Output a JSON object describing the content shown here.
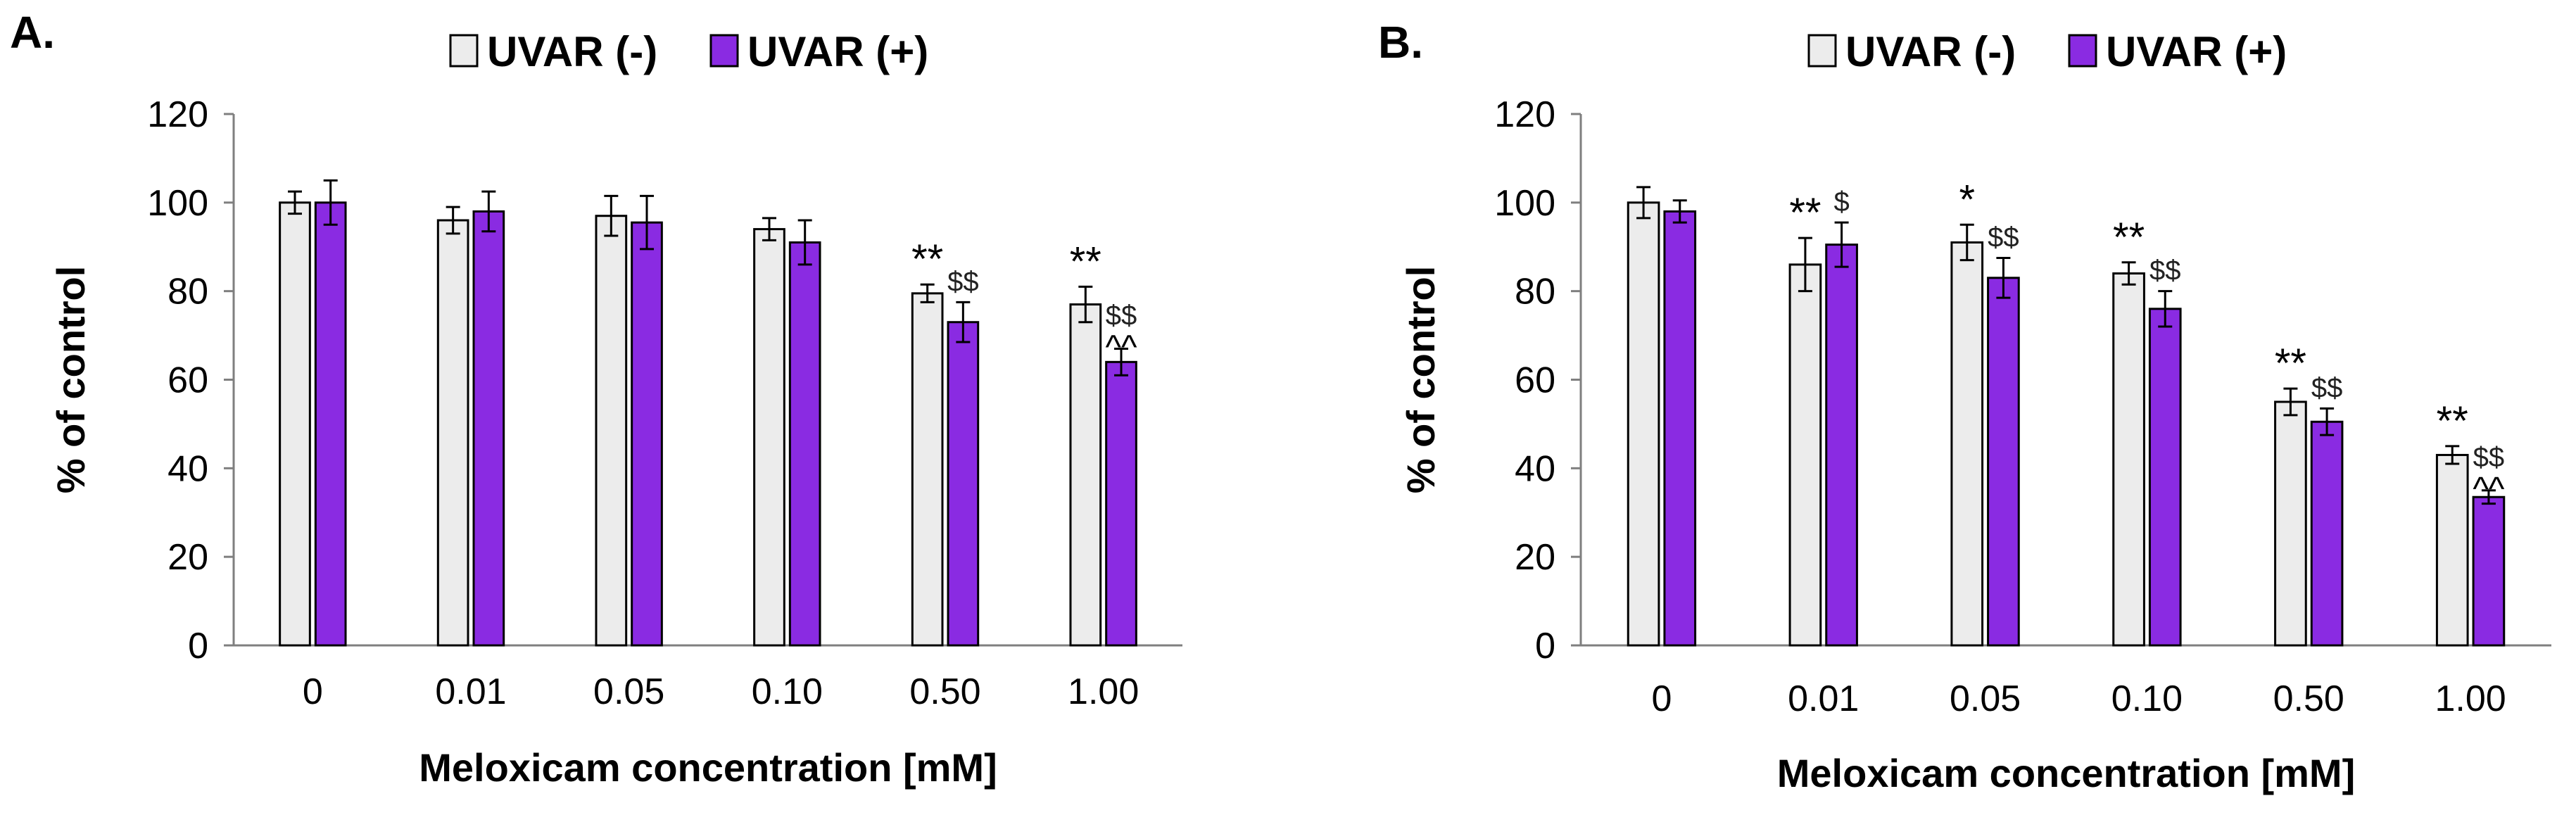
{
  "colors": {
    "uvar_minus_fill": "#ececec",
    "uvar_plus_fill": "#8a2be2",
    "bar_stroke": "#000000",
    "axis": "#7f7f7f"
  },
  "chart_data": [
    {
      "panel_label": "A.",
      "type": "bar",
      "xlabel": "Meloxicam concentration [mM]",
      "ylabel": "% of control",
      "ylim": [
        0,
        120
      ],
      "yticks": [
        "0",
        "20",
        "40",
        "60",
        "80",
        "100",
        "120"
      ],
      "categories": [
        "0",
        "0.01",
        "0.05",
        "0.10",
        "0.50",
        "1.00"
      ],
      "legend": [
        "UVAR (-)",
        "UVAR (+)"
      ],
      "legend_position": "top-center",
      "grid": false,
      "series": [
        {
          "name": "UVAR (-)",
          "values": [
            100,
            96,
            97,
            94,
            79.5,
            77
          ],
          "errors": [
            2.5,
            3,
            4.5,
            2.5,
            2,
            4
          ],
          "annotations": [
            "",
            "",
            "",
            "",
            "**",
            "**"
          ]
        },
        {
          "name": "UVAR (+)",
          "values": [
            100,
            98,
            95.5,
            91,
            73,
            64
          ],
          "errors": [
            5,
            4.5,
            6,
            5,
            4.5,
            3
          ],
          "annotations": [
            "",
            "",
            "",
            "",
            "$$",
            "$$\n^^"
          ]
        }
      ]
    },
    {
      "panel_label": "B.",
      "type": "bar",
      "xlabel": "Meloxicam concentration [mM]",
      "ylabel": "% of control",
      "ylim": [
        0,
        120
      ],
      "yticks": [
        "0",
        "20",
        "40",
        "60",
        "80",
        "100",
        "120"
      ],
      "categories": [
        "0",
        "0.01",
        "0.05",
        "0.10",
        "0.50",
        "1.00"
      ],
      "legend": [
        "UVAR (-)",
        "UVAR (+)"
      ],
      "legend_position": "top-center",
      "grid": false,
      "series": [
        {
          "name": "UVAR (-)",
          "values": [
            100,
            86,
            91,
            84,
            55,
            43
          ],
          "errors": [
            3.5,
            6,
            4,
            2.5,
            3,
            2
          ],
          "annotations": [
            "",
            "**",
            "*",
            "**",
            "**",
            "**"
          ]
        },
        {
          "name": "UVAR (+)",
          "values": [
            98,
            90.5,
            83,
            76,
            50.5,
            33.5
          ],
          "errors": [
            2.5,
            5,
            4.5,
            4,
            3,
            1.5
          ],
          "annotations": [
            "",
            "$",
            "$$",
            "$$",
            "$$",
            "$$\n^^"
          ]
        }
      ]
    }
  ]
}
